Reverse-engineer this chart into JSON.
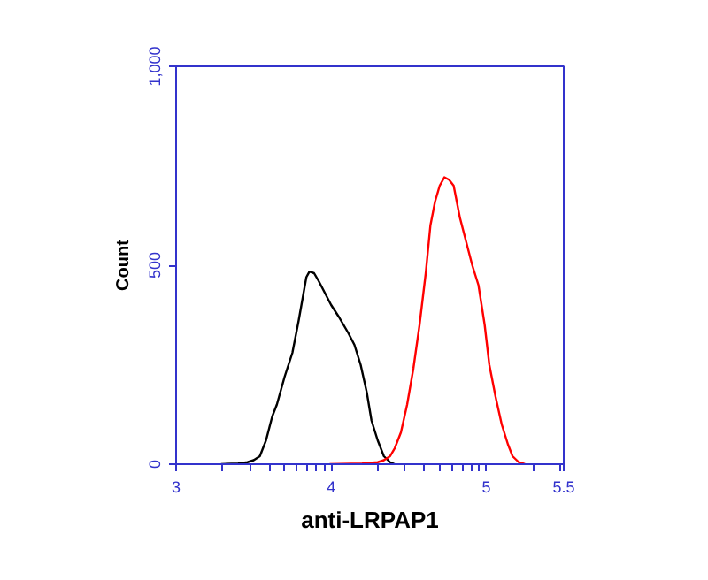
{
  "chart_data": {
    "type": "line",
    "xlabel": "anti-LRPAP1",
    "ylabel": "Count",
    "xlim": [
      3,
      5.5
    ],
    "ylim": [
      0,
      1000
    ],
    "xticks": [
      3,
      {
        "value": 3.301,
        "label": null
      },
      {
        "value": 3.477,
        "label": null
      },
      {
        "value": 3.602,
        "label": null
      },
      {
        "value": 3.699,
        "label": null
      },
      {
        "value": 3.778,
        "label": null
      },
      {
        "value": 3.845,
        "label": null
      },
      {
        "value": 3.903,
        "label": null
      },
      {
        "value": 3.954,
        "label": null
      },
      4,
      {
        "value": 4.301,
        "label": null
      },
      {
        "value": 4.477,
        "label": null
      },
      {
        "value": 4.602,
        "label": null
      },
      {
        "value": 4.699,
        "label": null
      },
      {
        "value": 4.778,
        "label": null
      },
      {
        "value": 4.845,
        "label": null
      },
      {
        "value": 4.903,
        "label": null
      },
      {
        "value": 4.954,
        "label": null
      },
      5,
      {
        "value": 5.301,
        "label": null
      },
      {
        "value": 5.477,
        "label": null
      },
      5.5
    ],
    "yticks": [
      0,
      500,
      {
        "value": 1000,
        "label": "1,000"
      }
    ],
    "grid": false,
    "marker": "none",
    "line_style": "solid",
    "series": [
      {
        "color": "#000000",
        "x": [
          3.29,
          3.4,
          3.46,
          3.5,
          3.54,
          3.58,
          3.62,
          3.65,
          3.7,
          3.75,
          3.79,
          3.84,
          3.86,
          3.89,
          3.92,
          3.96,
          4.0,
          4.05,
          4.11,
          4.15,
          4.19,
          4.23,
          4.26,
          4.3,
          4.34,
          4.38,
          4.41
        ],
        "values": [
          0,
          2,
          5,
          10,
          20,
          60,
          120,
          150,
          220,
          280,
          360,
          470,
          484,
          480,
          460,
          430,
          400,
          370,
          330,
          300,
          250,
          180,
          110,
          60,
          20,
          5,
          0
        ]
      },
      {
        "color": "#ff0000",
        "x": [
          3.99,
          4.2,
          4.3,
          4.34,
          4.38,
          4.41,
          4.45,
          4.49,
          4.53,
          4.57,
          4.61,
          4.64,
          4.67,
          4.7,
          4.73,
          4.76,
          4.79,
          4.83,
          4.87,
          4.91,
          4.95,
          4.99,
          5.02,
          5.06,
          5.1,
          5.14,
          5.17,
          5.21,
          5.25
        ],
        "values": [
          0,
          2,
          5,
          10,
          20,
          40,
          80,
          150,
          240,
          350,
          480,
          600,
          660,
          700,
          721,
          715,
          700,
          620,
          560,
          500,
          450,
          350,
          250,
          170,
          100,
          50,
          20,
          5,
          0
        ]
      }
    ]
  }
}
